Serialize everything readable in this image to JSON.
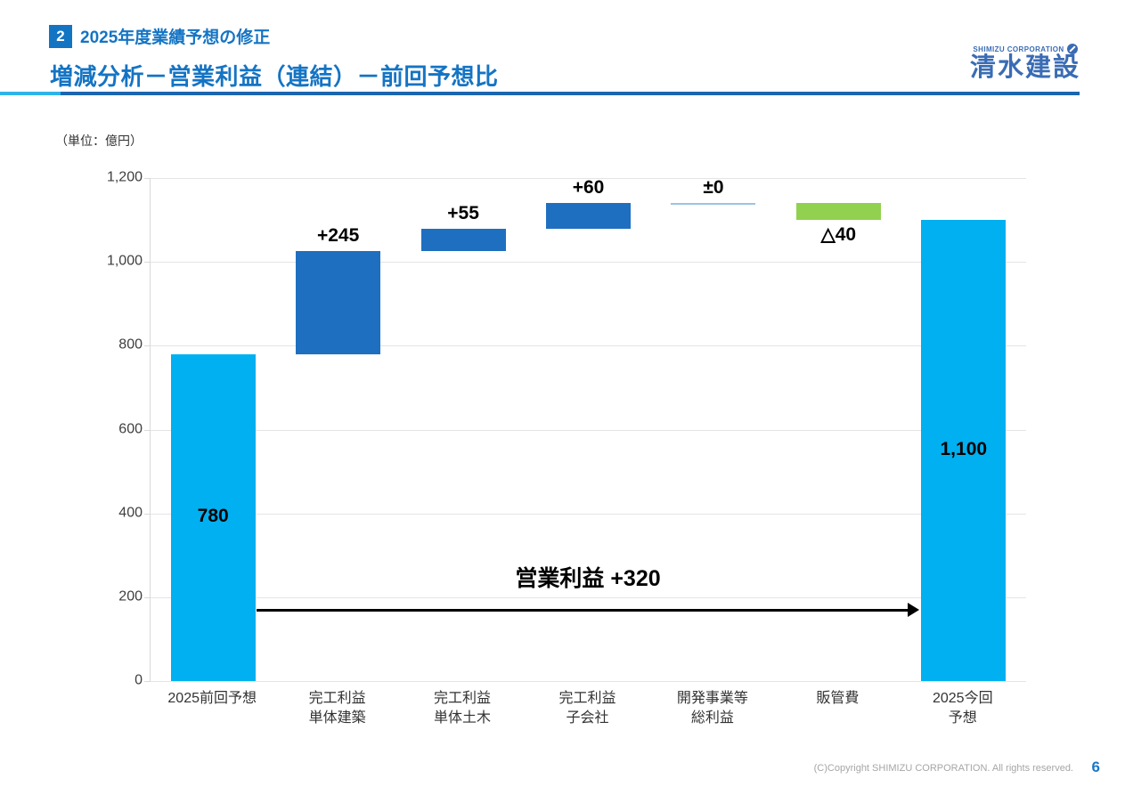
{
  "header": {
    "section_number": "2",
    "section_title": "2025年度業績予想の修正",
    "page_title": "増減分析－営業利益（連結）－前回予想比",
    "logo": {
      "small_text": "SHIMIZU CORPORATION",
      "main_text": "清水建設"
    }
  },
  "chart": {
    "unit_label": "（単位：億円）"
  },
  "chart_data": {
    "type": "bar",
    "subtype": "waterfall",
    "title": "増減分析－営業利益（連結）－前回予想比",
    "unit": "億円",
    "categories": [
      "2025前回予想",
      "完工利益\n単体建築",
      "完工利益\n単体土木",
      "完工利益\n子会社",
      "開発事業等\n総利益",
      "販管費",
      "2025今回予想"
    ],
    "values": [
      780,
      245,
      55,
      60,
      0,
      -40,
      1100
    ],
    "segments": [
      {
        "label": "780",
        "from": 0,
        "to": 780,
        "kind": "total"
      },
      {
        "label": "+245",
        "from": 780,
        "to": 1025,
        "kind": "increase"
      },
      {
        "label": "+55",
        "from": 1025,
        "to": 1080,
        "kind": "increase"
      },
      {
        "label": "+60",
        "from": 1080,
        "to": 1140,
        "kind": "increase"
      },
      {
        "label": "±0",
        "from": 1140,
        "to": 1140,
        "kind": "zero"
      },
      {
        "label": "△40",
        "from": 1100,
        "to": 1140,
        "kind": "decrease"
      },
      {
        "label": "1,100",
        "from": 0,
        "to": 1100,
        "kind": "total"
      }
    ],
    "ylim": [
      0,
      1200
    ],
    "ytick_step": 200,
    "y_tick_labels": [
      "0",
      "200",
      "400",
      "600",
      "800",
      "1,000",
      "1,200"
    ],
    "grid": true,
    "legend": false,
    "annotation": {
      "text": "営業利益 +320",
      "arrow_from_category": 0,
      "arrow_to_category": 6,
      "arrow_value": 170
    },
    "colors": {
      "total": "#00b0f0",
      "increase": "#1f6fc0",
      "decrease": "#92d050",
      "zero_line": "#9dc3e6"
    }
  },
  "footer": {
    "copyright": "(C)Copyright SHIMIZU CORPORATION. All rights reserved.",
    "page_number": "6"
  }
}
